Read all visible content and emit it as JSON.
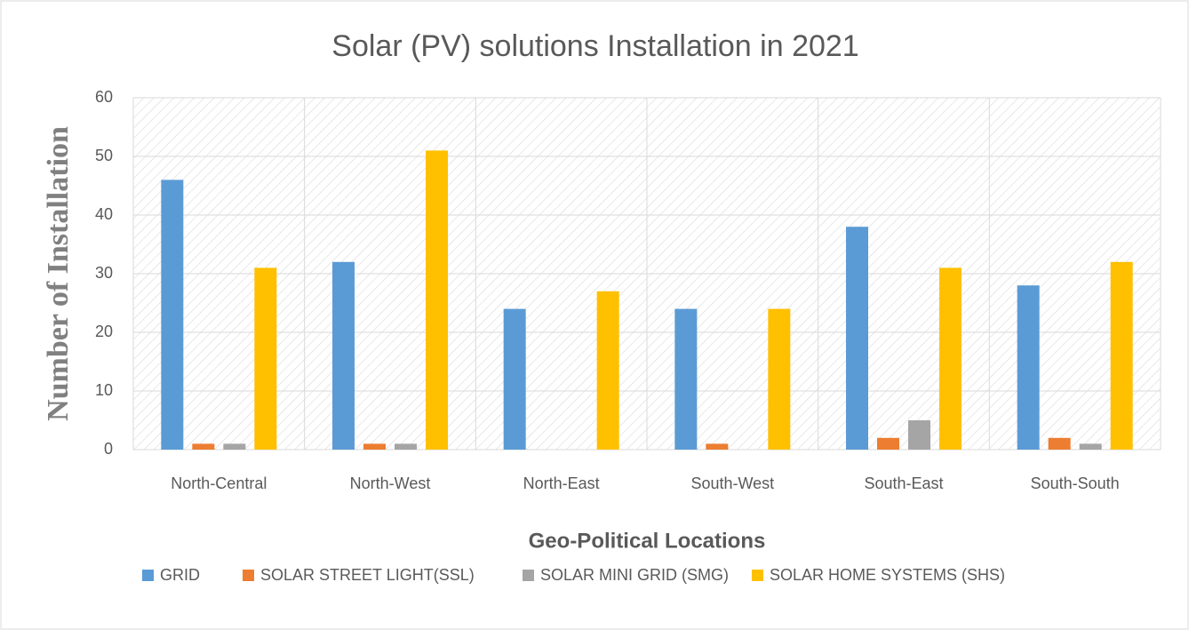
{
  "chart_data": {
    "type": "bar",
    "title": "Solar (PV) solutions Installation in 2021",
    "x_label": "Geo-Political Locations",
    "y_label": "Number of Installation",
    "categories": [
      "North-Central",
      "North-West",
      "North-East",
      "South-West",
      "South-East",
      "South-South"
    ],
    "series": [
      {
        "name": "GRID",
        "color": "#5b9bd5",
        "values": [
          46,
          32,
          24,
          24,
          38,
          28
        ]
      },
      {
        "name": "SOLAR STREET LIGHT(SSL)",
        "color": "#ed7d31",
        "values": [
          1,
          1,
          0,
          1,
          2,
          2
        ]
      },
      {
        "name": "SOLAR MINI GRID (SMG)",
        "color": "#a5a5a5",
        "values": [
          1,
          1,
          0,
          0,
          5,
          1
        ]
      },
      {
        "name": "SOLAR HOME SYSTEMS (SHS)",
        "color": "#ffc000",
        "values": [
          31,
          51,
          27,
          24,
          31,
          32
        ]
      }
    ],
    "ylim": [
      0,
      60
    ],
    "yticks": [
      0,
      10,
      20,
      30,
      40,
      50,
      60
    ],
    "grid": true,
    "legend": "bottom"
  }
}
